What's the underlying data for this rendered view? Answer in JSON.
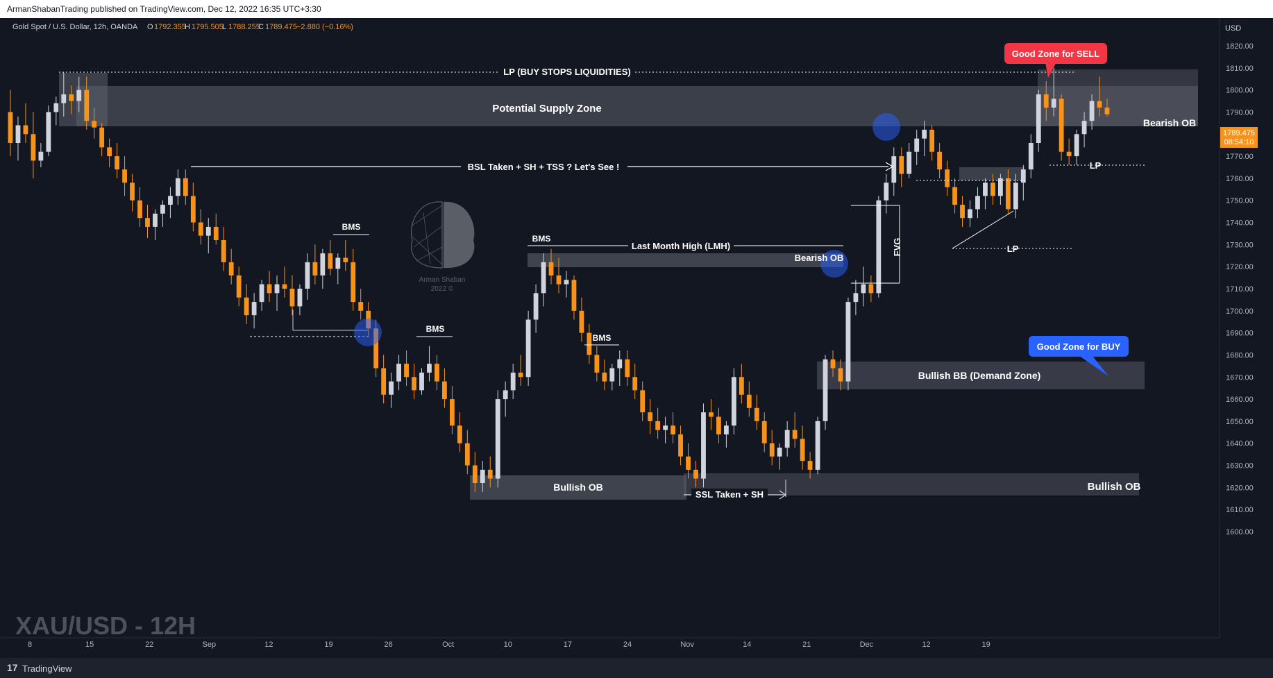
{
  "header": {
    "published": "ArmanShabanTrading published on TradingView.com, Dec 12, 2022 16:35 UTC+3:30"
  },
  "symbol_bar": {
    "name": "Gold Spot / U.S. Dollar, 12h, OANDA",
    "o_label": "O",
    "o": "1792.355",
    "h_label": "H",
    "h": "1795.505",
    "l_label": "L",
    "l": "1788.255",
    "c_label": "C",
    "c": "1789.475",
    "change": "−2.880 (−0.16%)"
  },
  "price_axis": {
    "currency": "USD",
    "last_price": "1789.475",
    "countdown": "08:54:10"
  },
  "watermark": "XAU/USD - 12H",
  "logo_watermark": {
    "line1": "Arman Shaban",
    "line2": "2022 ©"
  },
  "footer": {
    "logo": "17",
    "brand": "TradingView"
  },
  "colors": {
    "bull": "#d1d4dc",
    "bear": "#f7931a",
    "zone": "#5d606b",
    "sell_badge": "#f23645",
    "buy_badge": "#2962ff",
    "price_tag": "#f7931a"
  },
  "annotations": {
    "lp_buy_stops": "LP (BUY STOPS LIQUIDITIES)",
    "supply_zone": "Potential Supply Zone",
    "bsl": "BSL Taken + SH + TSS ? Let's See !",
    "bearish_ob_right": "Bearish OB",
    "bearish_ob_mid": "Bearish OB",
    "lp_right_top": "LP",
    "lp_right_low": "LP",
    "fvg": "FVG",
    "lmh": "Last Month High (LMH)",
    "bms1": "BMS",
    "bms2": "BMS",
    "bms3": "BMS",
    "bms4": "BMS",
    "demand_zone": "Bullish BB (Demand Zone)",
    "bullish_ob_left": "Bullish OB",
    "bullish_ob_right": "Bullish OB",
    "ssl": "SSL Taken + SH",
    "good_sell": "Good Zone for SELL",
    "good_buy": "Good Zone for BUY"
  },
  "chart_data": {
    "type": "candlestick",
    "title": "Gold Spot / U.S. Dollar, 12h, OANDA",
    "ylabel": "USD",
    "ylim": [
      1595,
      1820
    ],
    "y_ticks": [
      1600,
      1610,
      1620,
      1630,
      1640,
      1650,
      1660,
      1670,
      1680,
      1690,
      1700,
      1710,
      1720,
      1730,
      1740,
      1750,
      1760,
      1770,
      1780,
      1790,
      1800,
      1810,
      1820
    ],
    "x_tick_labels": [
      "8",
      "15",
      "22",
      "Sep",
      "12",
      "19",
      "26",
      "Oct",
      "10",
      "17",
      "24",
      "Nov",
      "14",
      "21",
      "Dec",
      "12",
      "19"
    ],
    "x_range": [
      "Aug 7",
      "Dec 23"
    ],
    "ohlc_start_date": "Aug 8",
    "bar_interval": "12h",
    "ohlc": [
      [
        1790,
        1800,
        1770,
        1776
      ],
      [
        1776,
        1788,
        1768,
        1784
      ],
      [
        1784,
        1794,
        1776,
        1780
      ],
      [
        1780,
        1790,
        1760,
        1768
      ],
      [
        1768,
        1776,
        1765,
        1772
      ],
      [
        1772,
        1793,
        1770,
        1790
      ],
      [
        1790,
        1797,
        1784,
        1794
      ],
      [
        1794,
        1808,
        1788,
        1798
      ],
      [
        1798,
        1802,
        1789,
        1795
      ],
      [
        1795,
        1806,
        1790,
        1800
      ],
      [
        1800,
        1806,
        1782,
        1786
      ],
      [
        1786,
        1792,
        1778,
        1783
      ],
      [
        1783,
        1785,
        1770,
        1774
      ],
      [
        1774,
        1778,
        1765,
        1770
      ],
      [
        1770,
        1776,
        1760,
        1764
      ],
      [
        1764,
        1770,
        1752,
        1758
      ],
      [
        1758,
        1762,
        1745,
        1750
      ],
      [
        1750,
        1756,
        1738,
        1742
      ],
      [
        1742,
        1748,
        1733,
        1738
      ],
      [
        1738,
        1746,
        1732,
        1744
      ],
      [
        1744,
        1750,
        1738,
        1748
      ],
      [
        1748,
        1756,
        1742,
        1752
      ],
      [
        1752,
        1764,
        1748,
        1760
      ],
      [
        1760,
        1764,
        1748,
        1752
      ],
      [
        1752,
        1758,
        1736,
        1740
      ],
      [
        1740,
        1746,
        1730,
        1734
      ],
      [
        1734,
        1742,
        1726,
        1738
      ],
      [
        1738,
        1744,
        1730,
        1732
      ],
      [
        1732,
        1738,
        1718,
        1722
      ],
      [
        1722,
        1728,
        1712,
        1716
      ],
      [
        1716,
        1720,
        1702,
        1706
      ],
      [
        1706,
        1712,
        1694,
        1698
      ],
      [
        1698,
        1708,
        1692,
        1704
      ],
      [
        1704,
        1714,
        1700,
        1712
      ],
      [
        1712,
        1718,
        1704,
        1708
      ],
      [
        1708,
        1716,
        1700,
        1712
      ],
      [
        1712,
        1720,
        1706,
        1710
      ],
      [
        1710,
        1716,
        1698,
        1702
      ],
      [
        1702,
        1712,
        1698,
        1710
      ],
      [
        1710,
        1726,
        1705,
        1722
      ],
      [
        1722,
        1730,
        1712,
        1716
      ],
      [
        1716,
        1728,
        1710,
        1726
      ],
      [
        1726,
        1732,
        1716,
        1719
      ],
      [
        1719,
        1726,
        1712,
        1724
      ],
      [
        1724,
        1732,
        1718,
        1722
      ],
      [
        1722,
        1728,
        1700,
        1704
      ],
      [
        1704,
        1710,
        1696,
        1700
      ],
      [
        1700,
        1704,
        1688,
        1692
      ],
      [
        1692,
        1696,
        1670,
        1674
      ],
      [
        1674,
        1680,
        1658,
        1662
      ],
      [
        1662,
        1672,
        1656,
        1668
      ],
      [
        1668,
        1680,
        1664,
        1676
      ],
      [
        1676,
        1682,
        1666,
        1670
      ],
      [
        1670,
        1676,
        1660,
        1664
      ],
      [
        1664,
        1674,
        1662,
        1672
      ],
      [
        1672,
        1684,
        1668,
        1676
      ],
      [
        1676,
        1680,
        1664,
        1668
      ],
      [
        1668,
        1674,
        1656,
        1660
      ],
      [
        1660,
        1666,
        1644,
        1648
      ],
      [
        1648,
        1654,
        1636,
        1640
      ],
      [
        1640,
        1646,
        1626,
        1630
      ],
      [
        1630,
        1636,
        1618,
        1622
      ],
      [
        1622,
        1632,
        1618,
        1628
      ],
      [
        1628,
        1634,
        1620,
        1624
      ],
      [
        1624,
        1664,
        1620,
        1660
      ],
      [
        1660,
        1668,
        1652,
        1664
      ],
      [
        1664,
        1676,
        1660,
        1672
      ],
      [
        1672,
        1680,
        1666,
        1670
      ],
      [
        1670,
        1700,
        1666,
        1696
      ],
      [
        1696,
        1712,
        1690,
        1708
      ],
      [
        1708,
        1726,
        1702,
        1722
      ],
      [
        1722,
        1728,
        1712,
        1716
      ],
      [
        1716,
        1724,
        1708,
        1712
      ],
      [
        1712,
        1718,
        1706,
        1714
      ],
      [
        1714,
        1716,
        1696,
        1700
      ],
      [
        1700,
        1706,
        1686,
        1690
      ],
      [
        1690,
        1694,
        1676,
        1680
      ],
      [
        1680,
        1684,
        1668,
        1672
      ],
      [
        1672,
        1678,
        1664,
        1668
      ],
      [
        1668,
        1676,
        1664,
        1674
      ],
      [
        1674,
        1682,
        1666,
        1678
      ],
      [
        1678,
        1682,
        1666,
        1670
      ],
      [
        1670,
        1676,
        1660,
        1664
      ],
      [
        1664,
        1668,
        1650,
        1654
      ],
      [
        1654,
        1660,
        1644,
        1650
      ],
      [
        1650,
        1656,
        1642,
        1646
      ],
      [
        1646,
        1652,
        1640,
        1648
      ],
      [
        1648,
        1654,
        1640,
        1644
      ],
      [
        1644,
        1648,
        1630,
        1634
      ],
      [
        1634,
        1640,
        1624,
        1628
      ],
      [
        1628,
        1632,
        1620,
        1624
      ],
      [
        1624,
        1658,
        1620,
        1654
      ],
      [
        1654,
        1660,
        1646,
        1652
      ],
      [
        1652,
        1656,
        1640,
        1644
      ],
      [
        1644,
        1650,
        1638,
        1648
      ],
      [
        1648,
        1674,
        1644,
        1670
      ],
      [
        1670,
        1676,
        1658,
        1662
      ],
      [
        1662,
        1668,
        1652,
        1656
      ],
      [
        1656,
        1662,
        1646,
        1650
      ],
      [
        1650,
        1654,
        1636,
        1640
      ],
      [
        1640,
        1646,
        1630,
        1634
      ],
      [
        1634,
        1640,
        1628,
        1638
      ],
      [
        1638,
        1650,
        1634,
        1646
      ],
      [
        1646,
        1654,
        1638,
        1642
      ],
      [
        1642,
        1648,
        1628,
        1632
      ],
      [
        1632,
        1636,
        1624,
        1628
      ],
      [
        1628,
        1652,
        1626,
        1650
      ],
      [
        1650,
        1680,
        1646,
        1678
      ],
      [
        1678,
        1682,
        1670,
        1674
      ],
      [
        1674,
        1678,
        1664,
        1668
      ],
      [
        1668,
        1706,
        1664,
        1704
      ],
      [
        1704,
        1714,
        1698,
        1708
      ],
      [
        1708,
        1720,
        1702,
        1712
      ],
      [
        1712,
        1716,
        1704,
        1708
      ],
      [
        1708,
        1752,
        1706,
        1750
      ],
      [
        1750,
        1762,
        1744,
        1758
      ],
      [
        1758,
        1774,
        1752,
        1770
      ],
      [
        1770,
        1774,
        1756,
        1762
      ],
      [
        1762,
        1776,
        1760,
        1772
      ],
      [
        1772,
        1782,
        1766,
        1778
      ],
      [
        1778,
        1786,
        1770,
        1782
      ],
      [
        1782,
        1784,
        1768,
        1772
      ],
      [
        1772,
        1776,
        1760,
        1764
      ],
      [
        1764,
        1768,
        1752,
        1756
      ],
      [
        1756,
        1760,
        1744,
        1748
      ],
      [
        1748,
        1752,
        1738,
        1742
      ],
      [
        1742,
        1750,
        1738,
        1746
      ],
      [
        1746,
        1756,
        1742,
        1752
      ],
      [
        1752,
        1760,
        1746,
        1758
      ],
      [
        1758,
        1762,
        1748,
        1752
      ],
      [
        1752,
        1762,
        1748,
        1760
      ],
      [
        1760,
        1764,
        1744,
        1746
      ],
      [
        1746,
        1762,
        1742,
        1758
      ],
      [
        1758,
        1766,
        1750,
        1764
      ],
      [
        1764,
        1780,
        1760,
        1776
      ],
      [
        1776,
        1800,
        1772,
        1798
      ],
      [
        1798,
        1804,
        1786,
        1792
      ],
      [
        1792,
        1810,
        1788,
        1796
      ],
      [
        1796,
        1798,
        1768,
        1772
      ],
      [
        1772,
        1778,
        1766,
        1770
      ],
      [
        1770,
        1782,
        1766,
        1780
      ],
      [
        1780,
        1790,
        1774,
        1786
      ],
      [
        1786,
        1798,
        1782,
        1795
      ],
      [
        1795,
        1806,
        1788,
        1792
      ],
      [
        1792,
        1796,
        1788,
        1789
      ]
    ]
  }
}
